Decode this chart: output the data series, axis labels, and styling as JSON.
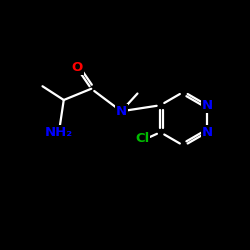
{
  "bg_color": "#000000",
  "bond_color": "#ffffff",
  "atom_colors": {
    "O": "#ff0000",
    "N": "#0000ff",
    "Cl": "#00bb00",
    "C": "#ffffff"
  },
  "figsize": [
    2.5,
    2.5
  ],
  "dpi": 100,
  "xlim": [
    0,
    10
  ],
  "ylim": [
    0,
    10
  ],
  "lw": 1.6,
  "fontsize": 9.5
}
